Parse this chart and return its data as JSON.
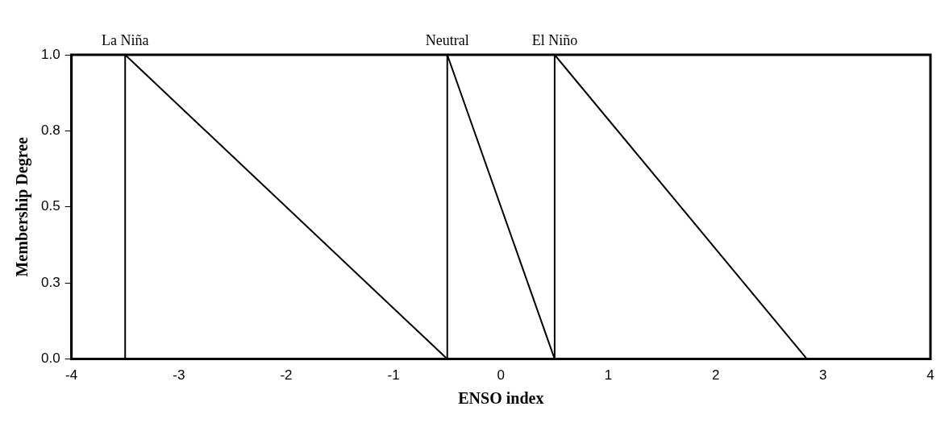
{
  "chart_data": {
    "type": "line",
    "xlabel": "ENSO index",
    "ylabel": "Membership Degree",
    "series": [
      {
        "name": "La Niña",
        "color": "#000000",
        "x": [
          -3.5,
          -3.5,
          -0.5
        ],
        "values": [
          0,
          1,
          0
        ]
      },
      {
        "name": "Neutral",
        "color": "#000000",
        "x": [
          -0.5,
          -0.5,
          0.5
        ],
        "values": [
          0,
          1,
          0
        ]
      },
      {
        "name": "El Niño",
        "color": "#000000",
        "x": [
          0.5,
          0.5,
          2.85
        ],
        "values": [
          0,
          1,
          0
        ]
      }
    ],
    "xlim": [
      -4,
      4
    ],
    "xticks": [
      -4,
      -3,
      -2,
      -1,
      0,
      1,
      2,
      3,
      4
    ],
    "ylim": [
      0,
      1
    ],
    "yticks": [
      {
        "value": 0,
        "label": "0.0"
      },
      {
        "value": 0.25,
        "label": "0.3"
      },
      {
        "value": 0.5,
        "label": "0.5"
      },
      {
        "value": 0.75,
        "label": "0.8"
      },
      {
        "value": 1,
        "label": "1.0"
      }
    ],
    "grid": false,
    "legend": false,
    "marker": "none",
    "line_style": "solid"
  }
}
